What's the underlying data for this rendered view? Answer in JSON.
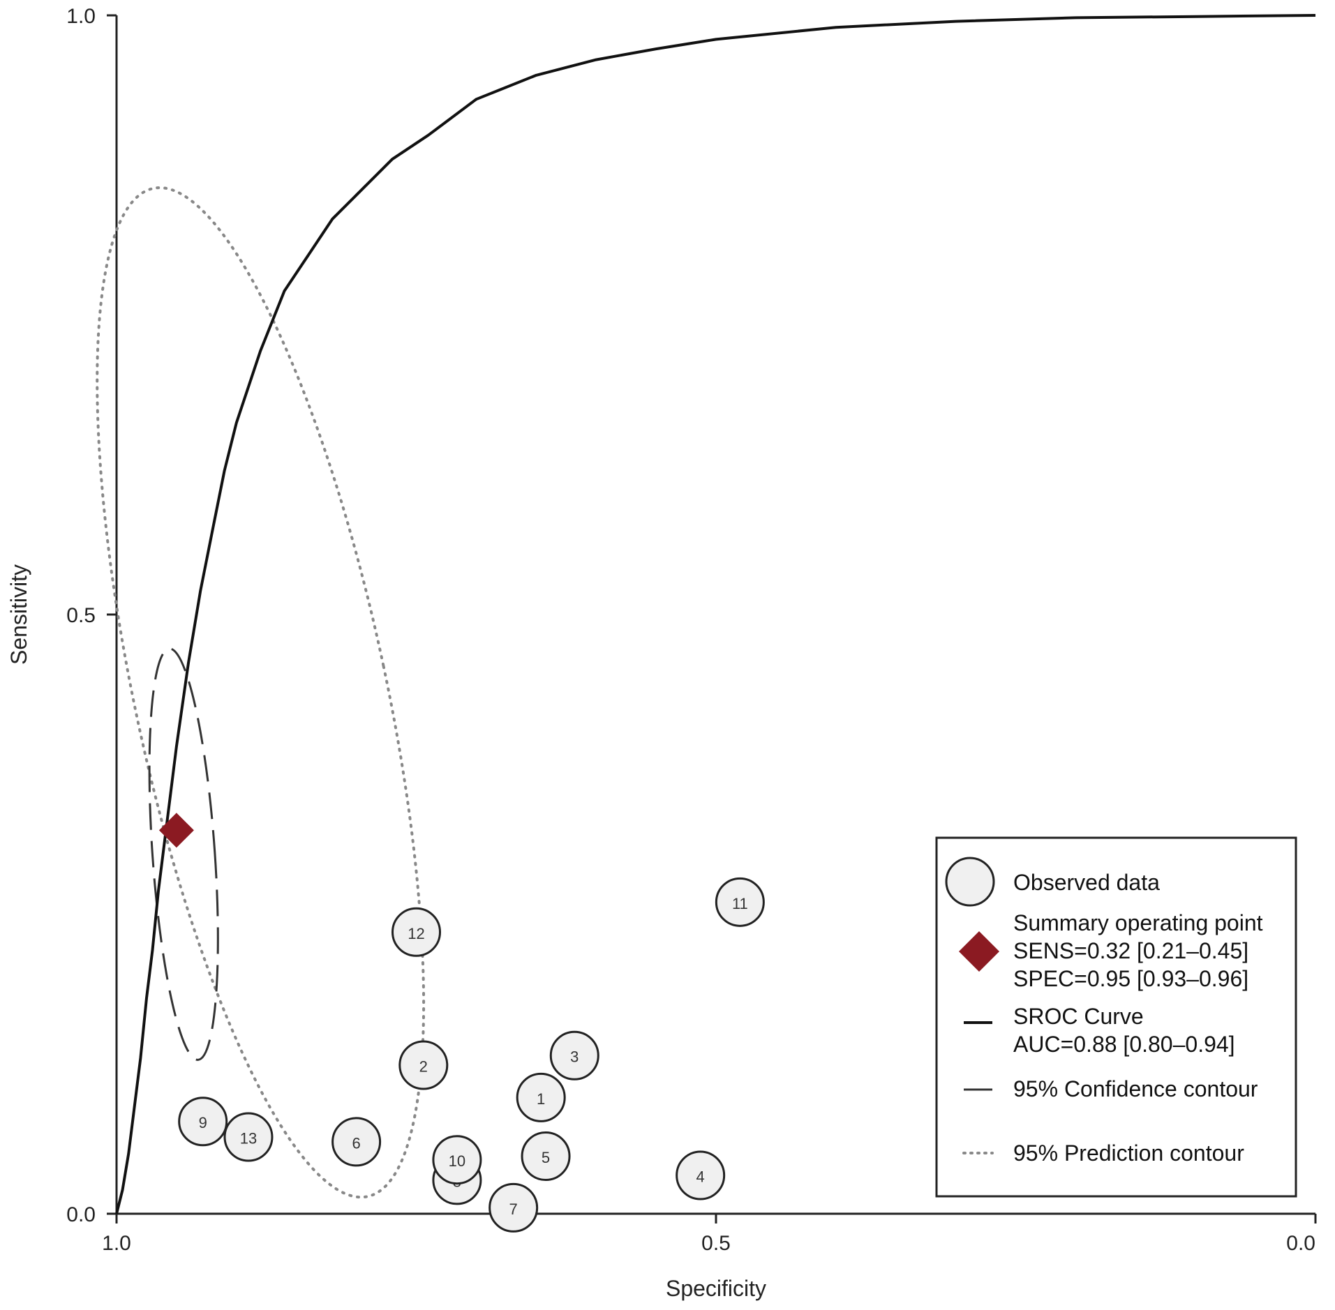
{
  "chart_data": {
    "type": "scatter",
    "xlabel": "Specificity",
    "ylabel": "Sensitivity",
    "x_reversed": true,
    "xlim": [
      1.0,
      0.0
    ],
    "ylim": [
      0.0,
      1.0
    ],
    "x_ticks": [
      {
        "value": 1.0,
        "label": "1.0"
      },
      {
        "value": 0.5,
        "label": "0.5"
      },
      {
        "value": 0.0,
        "label": "0.0"
      }
    ],
    "y_ticks": [
      {
        "value": 0.0,
        "label": "0.0"
      },
      {
        "value": 0.5,
        "label": "0.5"
      },
      {
        "value": 1.0,
        "label": "1.0"
      }
    ],
    "grid": false,
    "legend_position": "bottom-right",
    "observed_data": [
      {
        "id": "1",
        "spec": 0.646,
        "sens": 0.097
      },
      {
        "id": "2",
        "spec": 0.744,
        "sens": 0.124
      },
      {
        "id": "3",
        "spec": 0.618,
        "sens": 0.132
      },
      {
        "id": "4",
        "spec": 0.513,
        "sens": 0.032
      },
      {
        "id": "5",
        "spec": 0.642,
        "sens": 0.048
      },
      {
        "id": "6",
        "spec": 0.8,
        "sens": 0.06
      },
      {
        "id": "7",
        "spec": 0.669,
        "sens": 0.005
      },
      {
        "id": "8",
        "spec": 0.716,
        "sens": 0.028
      },
      {
        "id": "9",
        "spec": 0.928,
        "sens": 0.077
      },
      {
        "id": "10",
        "spec": 0.716,
        "sens": 0.045
      },
      {
        "id": "11",
        "spec": 0.48,
        "sens": 0.26
      },
      {
        "id": "12",
        "spec": 0.75,
        "sens": 0.235
      },
      {
        "id": "13",
        "spec": 0.89,
        "sens": 0.064
      }
    ],
    "summary_point": {
      "spec": 0.95,
      "sens": 0.32
    },
    "sroc_curve": [
      [
        1.0,
        0.0
      ],
      [
        0.995,
        0.02
      ],
      [
        0.99,
        0.05
      ],
      [
        0.985,
        0.09
      ],
      [
        0.98,
        0.13
      ],
      [
        0.975,
        0.18
      ],
      [
        0.97,
        0.22
      ],
      [
        0.965,
        0.27
      ],
      [
        0.96,
        0.31
      ],
      [
        0.955,
        0.35
      ],
      [
        0.95,
        0.39
      ],
      [
        0.94,
        0.46
      ],
      [
        0.93,
        0.52
      ],
      [
        0.92,
        0.57
      ],
      [
        0.91,
        0.62
      ],
      [
        0.9,
        0.66
      ],
      [
        0.88,
        0.72
      ],
      [
        0.86,
        0.77
      ],
      [
        0.84,
        0.8
      ],
      [
        0.82,
        0.83
      ],
      [
        0.8,
        0.85
      ],
      [
        0.77,
        0.88
      ],
      [
        0.74,
        0.9
      ],
      [
        0.7,
        0.93
      ],
      [
        0.65,
        0.95
      ],
      [
        0.6,
        0.963
      ],
      [
        0.55,
        0.972
      ],
      [
        0.5,
        0.98
      ],
      [
        0.4,
        0.99
      ],
      [
        0.3,
        0.995
      ],
      [
        0.2,
        0.998
      ],
      [
        0.1,
        0.999
      ],
      [
        0.0,
        1.0
      ]
    ],
    "confidence_contour": {
      "center_spec": 0.944,
      "center_sens": 0.3,
      "half_width_spec": 0.026,
      "half_height_sens": 0.172,
      "tilt_deg": -4
    },
    "prediction_contour": {
      "center_spec": 0.88,
      "center_sens": 0.435,
      "half_width_spec": 0.105,
      "half_height_sens": 0.43,
      "tilt_deg": -12
    },
    "legend": {
      "observed_label": "Observed data",
      "summary_label": "Summary operating point",
      "summary_sens": "SENS=0.32 [0.21–0.45]",
      "summary_spec": "SPEC=0.95 [0.93–0.96]",
      "sroc_label": "SROC Curve",
      "sroc_auc": "AUC=0.88 [0.80–0.94]",
      "confidence_label": "95% Confidence contour",
      "prediction_label": "95% Prediction contour"
    },
    "colors": {
      "summary_point": "#8b1a22",
      "circle_fill": "#f0f0f0",
      "curve": "#111111",
      "prediction": "#888888"
    }
  }
}
